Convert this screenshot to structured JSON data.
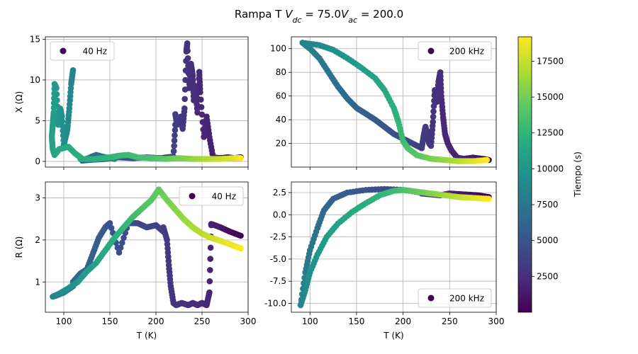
{
  "figure": {
    "title_prefix": "Rampa T ",
    "title_math": [
      {
        "t": "V",
        "italic": true
      },
      {
        "t": "dc",
        "italic": true,
        "sub": true
      },
      {
        "t": " = 75.0",
        "italic": false
      },
      {
        "t": "V",
        "italic": true
      },
      {
        "t": "ac",
        "italic": true,
        "sub": true
      },
      {
        "t": " = 200.0",
        "italic": false
      }
    ]
  },
  "colorbar": {
    "label": "Tiempo (s)",
    "colormap": "viridis",
    "min": 0,
    "max": 19200,
    "ticks": [
      2500,
      5000,
      7500,
      10000,
      12500,
      15000,
      17500
    ]
  },
  "chart_data": [
    {
      "id": "x-40hz",
      "type": "scatter",
      "ylabel": "X (Ω)",
      "xlabel": "",
      "legend": "40 Hz",
      "legend_position": "upper-left",
      "xlim": [
        80,
        300
      ],
      "ylim": [
        -0.7,
        15.3
      ],
      "xticks": [
        100,
        150,
        200,
        250,
        300
      ],
      "yticks": [
        0,
        5,
        10,
        15
      ],
      "show_xticklabels": false,
      "grid": true,
      "segments": [
        {
          "t0": 0,
          "t1": 1800,
          "points": [
            [
              292,
              0.5
            ],
            [
              285,
              0.4
            ],
            [
              278,
              0.5
            ],
            [
              270,
              0.4
            ],
            [
              262,
              0.5
            ]
          ]
        },
        {
          "t0": 1800,
          "t1": 3400,
          "points": [
            [
              262,
              0.5
            ],
            [
              258,
              3.0
            ],
            [
              255,
              5.5
            ],
            [
              252,
              3.0
            ],
            [
              248,
              8.5
            ],
            [
              247,
              11.0
            ],
            [
              245,
              6.0
            ],
            [
              243,
              9.0
            ],
            [
              241,
              7.5
            ],
            [
              240,
              10.5
            ],
            [
              238,
              12.0
            ],
            [
              236,
              9.0
            ],
            [
              234,
              14.5
            ],
            [
              233,
              13.5
            ],
            [
              231,
              6.5
            ],
            [
              229,
              4.0
            ],
            [
              227,
              5.5
            ],
            [
              225,
              5.0
            ],
            [
              223,
              4.5
            ],
            [
              221,
              5.8
            ]
          ]
        },
        {
          "t0": 3400,
          "t1": 6000,
          "points": [
            [
              221,
              4.5
            ],
            [
              219,
              0.6
            ],
            [
              205,
              0.4
            ],
            [
              190,
              0.5
            ],
            [
              175,
              0.4
            ],
            [
              160,
              0.5
            ],
            [
              145,
              0.3
            ],
            [
              130,
              0.2
            ],
            [
              120,
              0.1
            ]
          ]
        },
        {
          "t0": 6000,
          "t1": 8500,
          "points": [
            [
              120,
              0.1
            ],
            [
              135,
              0.8
            ],
            [
              145,
              0.5
            ],
            [
              155,
              0.3
            ]
          ]
        },
        {
          "t0": 8500,
          "t1": 12000,
          "points": [
            [
              110,
              11.2
            ],
            [
              108,
              9.5
            ],
            [
              106,
              6.5
            ],
            [
              104,
              4.0
            ],
            [
              102,
              3.0
            ],
            [
              100,
              2.0
            ],
            [
              98,
              5.5
            ],
            [
              96,
              6.5
            ],
            [
              94,
              4.5
            ],
            [
              92,
              9.0
            ],
            [
              90,
              9.5
            ],
            [
              89,
              6.0
            ],
            [
              88,
              4.5
            ],
            [
              87,
              3.0
            ],
            [
              88,
              1.5
            ],
            [
              90,
              0.8
            ],
            [
              95,
              1.5
            ],
            [
              105,
              1.8
            ],
            [
              112,
              1.0
            ],
            [
              118,
              0.5
            ]
          ]
        },
        {
          "t0": 12000,
          "t1": 13500,
          "points": [
            [
              118,
              0.3
            ],
            [
              135,
              0.3
            ],
            [
              150,
              0.5
            ],
            [
              160,
              0.7
            ],
            [
              170,
              0.8
            ],
            [
              180,
              0.5
            ],
            [
              195,
              0.4
            ]
          ]
        },
        {
          "t0": 13500,
          "t1": 19200,
          "points": [
            [
              195,
              0.4
            ],
            [
              210,
              0.3
            ],
            [
              225,
              0.4
            ],
            [
              240,
              0.3
            ],
            [
              255,
              0.3
            ],
            [
              270,
              0.3
            ],
            [
              285,
              0.4
            ],
            [
              292,
              0.4
            ]
          ]
        }
      ]
    },
    {
      "id": "x-200khz",
      "type": "scatter",
      "ylabel": "",
      "xlabel": "",
      "legend": "200 kHz",
      "legend_position": "upper-right",
      "xlim": [
        80,
        300
      ],
      "ylim": [
        0,
        110
      ],
      "xticks": [
        100,
        150,
        200,
        250,
        300
      ],
      "yticks": [
        20,
        40,
        60,
        80,
        100
      ],
      "show_xticklabels": false,
      "grid": true,
      "segments": [
        {
          "t0": 0,
          "t1": 1800,
          "points": [
            [
              292,
              6
            ],
            [
              285,
              7
            ],
            [
              275,
              8
            ],
            [
              265,
              7
            ]
          ]
        },
        {
          "t0": 1800,
          "t1": 3400,
          "points": [
            [
              265,
              7
            ],
            [
              258,
              8
            ],
            [
              252,
              14
            ],
            [
              248,
              20
            ],
            [
              245,
              28
            ],
            [
              243,
              42
            ],
            [
              241,
              60
            ],
            [
              240,
              80
            ],
            [
              238,
              72
            ],
            [
              236,
              55
            ],
            [
              234,
              65
            ],
            [
              232,
              38
            ],
            [
              230,
              18
            ],
            [
              228,
              20
            ],
            [
              226,
              28
            ],
            [
              224,
              34
            ],
            [
              222,
              26
            ],
            [
              220,
              16
            ]
          ]
        },
        {
          "t0": 3400,
          "t1": 8500,
          "points": [
            [
              220,
              16
            ],
            [
              210,
              20
            ],
            [
              200,
              24
            ],
            [
              190,
              28
            ],
            [
              180,
              34
            ],
            [
              170,
              40
            ],
            [
              160,
              45
            ],
            [
              150,
              50
            ],
            [
              140,
              58
            ],
            [
              130,
              68
            ],
            [
              120,
              80
            ],
            [
              110,
              92
            ],
            [
              100,
              100
            ],
            [
              92,
              105
            ]
          ]
        },
        {
          "t0": 8500,
          "t1": 14000,
          "points": [
            [
              92,
              105
            ],
            [
              110,
              103
            ],
            [
              125,
              99
            ],
            [
              140,
              92
            ],
            [
              155,
              84
            ],
            [
              170,
              75
            ],
            [
              180,
              65
            ],
            [
              190,
              50
            ],
            [
              195,
              38
            ],
            [
              200,
              22
            ],
            [
              205,
              16
            ],
            [
              215,
              10
            ]
          ]
        },
        {
          "t0": 14000,
          "t1": 19200,
          "points": [
            [
              215,
              10
            ],
            [
              230,
              7
            ],
            [
              245,
              6
            ],
            [
              260,
              5
            ],
            [
              275,
              5
            ],
            [
              290,
              6
            ]
          ]
        }
      ]
    },
    {
      "id": "r-40hz",
      "type": "scatter",
      "ylabel": "R (Ω)",
      "xlabel": "T (K)",
      "legend": "40 Hz",
      "legend_position": "upper-right",
      "xlim": [
        80,
        300
      ],
      "ylim": [
        0.28,
        3.38
      ],
      "xticks": [
        100,
        150,
        200,
        250,
        300
      ],
      "yticks": [
        1,
        2,
        3
      ],
      "show_xticklabels": true,
      "grid": true,
      "segments": [
        {
          "t0": 0,
          "t1": 1800,
          "points": [
            [
              292,
              2.1
            ],
            [
              280,
              2.2
            ],
            [
              270,
              2.3
            ],
            [
              260,
              2.38
            ]
          ]
        },
        {
          "t0": 1800,
          "t1": 3400,
          "points": [
            [
              260,
              2.35
            ],
            [
              258,
              0.75
            ],
            [
              255,
              0.45
            ],
            [
              250,
              0.5
            ],
            [
              245,
              0.45
            ],
            [
              240,
              0.5
            ],
            [
              235,
              0.45
            ],
            [
              228,
              0.5
            ],
            [
              222,
              0.45
            ],
            [
              219,
              0.5
            ],
            [
              216,
              0.9
            ],
            [
              214,
              1.4
            ],
            [
              212,
              2.0
            ],
            [
              208,
              2.3
            ]
          ]
        },
        {
          "t0": 3400,
          "t1": 6500,
          "points": [
            [
              208,
              2.2
            ],
            [
              200,
              2.35
            ],
            [
              190,
              2.3
            ],
            [
              180,
              2.4
            ],
            [
              170,
              2.4
            ],
            [
              160,
              1.7
            ],
            [
              150,
              2.4
            ],
            [
              145,
              2.3
            ],
            [
              138,
              2.05
            ],
            [
              132,
              1.7
            ],
            [
              125,
              1.3
            ],
            [
              118,
              1.2
            ],
            [
              110,
              1.0
            ]
          ]
        },
        {
          "t0": 6500,
          "t1": 9000,
          "points": [
            [
              110,
              0.9
            ],
            [
              100,
              0.75
            ],
            [
              92,
              0.68
            ],
            [
              88,
              0.65
            ],
            [
              95,
              0.72
            ]
          ]
        },
        {
          "t0": 9000,
          "t1": 14500,
          "points": [
            [
              95,
              0.72
            ],
            [
              105,
              0.85
            ],
            [
              115,
              1.0
            ],
            [
              125,
              1.25
            ],
            [
              135,
              1.45
            ],
            [
              145,
              1.75
            ],
            [
              155,
              2.05
            ],
            [
              165,
              2.3
            ],
            [
              175,
              2.55
            ],
            [
              185,
              2.75
            ],
            [
              195,
              2.95
            ],
            [
              203,
              3.2
            ]
          ]
        },
        {
          "t0": 14500,
          "t1": 19200,
          "points": [
            [
              203,
              3.2
            ],
            [
              212,
              2.95
            ],
            [
              220,
              2.75
            ],
            [
              230,
              2.5
            ],
            [
              240,
              2.3
            ],
            [
              250,
              2.15
            ],
            [
              260,
              2.05
            ],
            [
              270,
              1.98
            ],
            [
              280,
              1.9
            ],
            [
              292,
              1.8
            ]
          ]
        }
      ]
    },
    {
      "id": "r-200khz",
      "type": "scatter",
      "ylabel": "",
      "xlabel": "T (K)",
      "legend": "200 kHz",
      "legend_position": "lower-right",
      "xlim": [
        80,
        300
      ],
      "ylim": [
        -11.0,
        3.7
      ],
      "xticks": [
        100,
        150,
        200,
        250,
        300
      ],
      "yticks": [
        -10.0,
        -7.5,
        -5.0,
        -2.5,
        0.0,
        2.5
      ],
      "show_xticklabels": true,
      "grid": true,
      "segments": [
        {
          "t0": 0,
          "t1": 3400,
          "points": [
            [
              292,
              2.0
            ],
            [
              280,
              2.2
            ],
            [
              265,
              2.3
            ],
            [
              250,
              2.4
            ],
            [
              240,
              2.2
            ],
            [
              230,
              2.3
            ],
            [
              220,
              2.4
            ]
          ]
        },
        {
          "t0": 3400,
          "t1": 8500,
          "points": [
            [
              220,
              2.5
            ],
            [
              200,
              2.8
            ],
            [
              180,
              2.9
            ],
            [
              160,
              2.8
            ],
            [
              140,
              2.5
            ],
            [
              125,
              1.8
            ],
            [
              115,
              0.5
            ],
            [
              108,
              -1.5
            ],
            [
              100,
              -4.0
            ],
            [
              95,
              -6.5
            ],
            [
              90,
              -10.2
            ]
          ]
        },
        {
          "t0": 8500,
          "t1": 13500,
          "points": [
            [
              90,
              -10.2
            ],
            [
              95,
              -8.5
            ],
            [
              100,
              -6.5
            ],
            [
              108,
              -4.5
            ],
            [
              118,
              -2.5
            ],
            [
              130,
              -1.0
            ],
            [
              145,
              0.3
            ],
            [
              160,
              1.3
            ],
            [
              175,
              2.2
            ],
            [
              190,
              2.7
            ],
            [
              200,
              2.8
            ]
          ]
        },
        {
          "t0": 13500,
          "t1": 19200,
          "points": [
            [
              200,
              2.8
            ],
            [
              215,
              2.6
            ],
            [
              230,
              2.4
            ],
            [
              245,
              2.2
            ],
            [
              260,
              2.0
            ],
            [
              275,
              1.9
            ],
            [
              292,
              1.8
            ]
          ]
        }
      ]
    }
  ]
}
